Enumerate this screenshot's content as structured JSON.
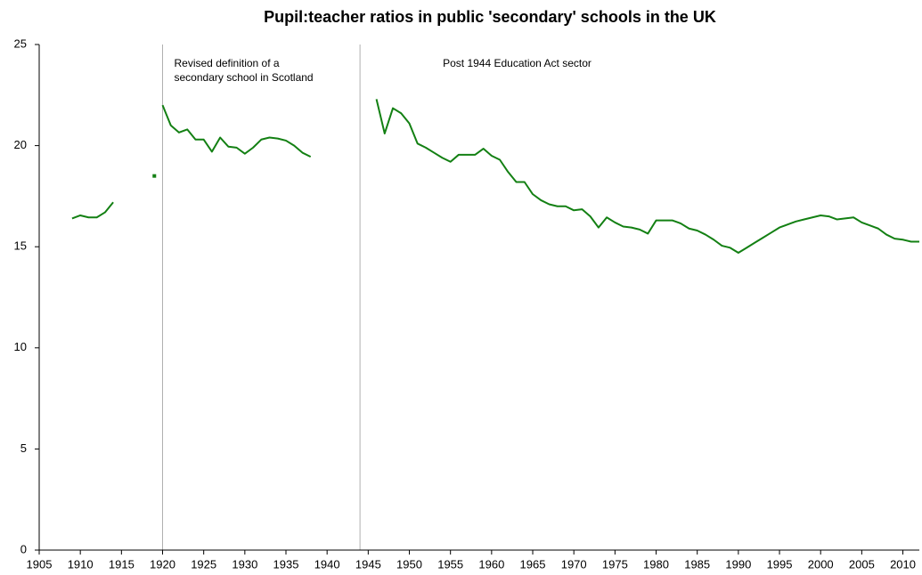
{
  "chart_data": {
    "type": "line",
    "title": "Pupil:teacher ratios in public 'secondary' schools in the UK",
    "annotations": [
      {
        "x": 1920,
        "lines": [
          "Revised definition of a",
          "secondary school in Scotland"
        ]
      },
      {
        "x": 1944,
        "lines": [
          "Post 1944 Education Act sector"
        ]
      }
    ],
    "series": [
      {
        "color": "#138013",
        "marker": "none",
        "x": [
          1909,
          1910,
          1911,
          1912,
          1913,
          1914,
          1915,
          1920,
          1921,
          1922,
          1923,
          1924,
          1925,
          1926,
          1927,
          1928,
          1929,
          1930,
          1931,
          1932,
          1933,
          1934,
          1935,
          1936,
          1937,
          1938,
          1939,
          1946,
          1947,
          1948,
          1949,
          1950,
          1951,
          1952,
          1953,
          1954,
          1955,
          1956,
          1957,
          1958,
          1959,
          1960,
          1961,
          1962,
          1963,
          1964,
          1965,
          1966,
          1967,
          1968,
          1969,
          1970,
          1971,
          1972,
          1973,
          1974,
          1975,
          1976,
          1977,
          1978,
          1979,
          1980,
          1981,
          1982,
          1983,
          1984,
          1985,
          1986,
          1987,
          1988,
          1989,
          1990,
          1991,
          1992,
          1993,
          1994,
          1995,
          1996,
          1997,
          1998,
          1999,
          2000,
          2001,
          2002,
          2003,
          2004,
          2005,
          2006,
          2007,
          2008,
          2009,
          2010,
          2011,
          2012
        ],
        "values": [
          16.4,
          16.55,
          16.45,
          16.45,
          16.7,
          17.2,
          null,
          22.0,
          21.0,
          20.65,
          20.8,
          20.3,
          20.3,
          19.7,
          20.4,
          19.95,
          19.9,
          19.6,
          19.9,
          20.3,
          20.4,
          20.35,
          20.25,
          20.0,
          19.65,
          19.45,
          null,
          22.3,
          20.6,
          21.85,
          21.6,
          21.1,
          20.1,
          19.9,
          19.65,
          19.4,
          19.2,
          19.55,
          19.55,
          19.55,
          19.85,
          19.5,
          19.3,
          18.7,
          18.2,
          18.2,
          17.6,
          17.3,
          17.1,
          17.0,
          17.0,
          16.8,
          16.85,
          16.5,
          15.95,
          16.45,
          16.2,
          16.0,
          15.95,
          15.85,
          15.65,
          16.3,
          16.3,
          16.3,
          16.15,
          15.9,
          15.8,
          15.6,
          15.35,
          15.05,
          14.95,
          14.7,
          14.95,
          15.2,
          15.45,
          15.7,
          15.95,
          16.1,
          16.25,
          16.35,
          16.45,
          16.55,
          16.5,
          16.35,
          16.4,
          16.45,
          16.2,
          16.05,
          15.9,
          15.6,
          15.4,
          15.35,
          15.25,
          15.25
        ]
      },
      {
        "color": "#138013",
        "marker": "square",
        "x": [
          1919
        ],
        "values": [
          18.5
        ]
      }
    ],
    "vlines": [
      1920,
      1944
    ],
    "vline_color": "#b0b0b0",
    "xlim": [
      1905,
      2012
    ],
    "xticks": [
      1905,
      1910,
      1915,
      1920,
      1925,
      1930,
      1935,
      1940,
      1945,
      1950,
      1955,
      1960,
      1965,
      1970,
      1975,
      1980,
      1985,
      1990,
      1995,
      2000,
      2005,
      2010
    ],
    "ylim": [
      0,
      25
    ],
    "yticks": [
      0,
      5,
      10,
      15,
      20,
      25
    ],
    "grid": false
  }
}
